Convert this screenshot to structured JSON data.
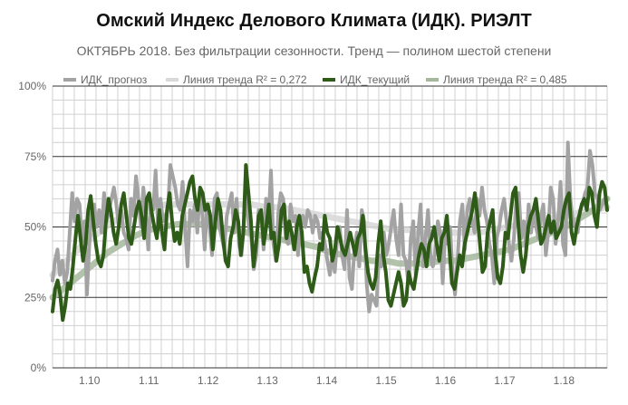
{
  "chart_data": {
    "type": "line",
    "title": "Омский Индекс Делового Климата (ИДК). РИЭЛТ",
    "subtitle": "ОКТЯБРЬ 2018. Без фильтрации сезонности. Тренд — полином шестой степени",
    "xlabel": "",
    "ylabel": "",
    "x_tick_labels": [
      "1.10",
      "1.11",
      "1.12",
      "1.13",
      "1.14",
      "1.15",
      "1.16",
      "1.17",
      "1.18"
    ],
    "y_tick_labels": [
      "0%",
      "25%",
      "50%",
      "75%",
      "100%"
    ],
    "ylim": [
      0,
      100
    ],
    "grid": true,
    "legend_position": "top",
    "series": [
      {
        "name": "ИДК_прогноз",
        "color": "#a3a3a3",
        "values": [
          31,
          38,
          42,
          33,
          38,
          30,
          34,
          48,
          62,
          52,
          60,
          58,
          45,
          52,
          26,
          44,
          56,
          58,
          50,
          56,
          48,
          62,
          52,
          56,
          60,
          64,
          58,
          50,
          56,
          48,
          46,
          42,
          60,
          54,
          68,
          60,
          50,
          64,
          55,
          42,
          58,
          56,
          70,
          50,
          60,
          52,
          54,
          56,
          72,
          68,
          64,
          58,
          56,
          66,
          50,
          36,
          56,
          52,
          58,
          48,
          62,
          55,
          42,
          58,
          50,
          40,
          60,
          62,
          50,
          46,
          42,
          54,
          58,
          62,
          48,
          60,
          44,
          40,
          52,
          62,
          50,
          46,
          35,
          40,
          56,
          54,
          42,
          60,
          52,
          70,
          44,
          38,
          55,
          62,
          60,
          46,
          44,
          58,
          52,
          54,
          40,
          50,
          54,
          50,
          56,
          54,
          48,
          54,
          52,
          46,
          48,
          44,
          38,
          33,
          40,
          34,
          46,
          50,
          40,
          35,
          56,
          32,
          28,
          42,
          48,
          36,
          56,
          52,
          30,
          20,
          26,
          24,
          22,
          40,
          36,
          48,
          40,
          44,
          50,
          56,
          46,
          40,
          58,
          40,
          38,
          30,
          46,
          52,
          33,
          48,
          58,
          36,
          46,
          56,
          40,
          36,
          42,
          52,
          48,
          30,
          48,
          44,
          50,
          34,
          26,
          38,
          52,
          58,
          42,
          56,
          60,
          52,
          48,
          60,
          54,
          64,
          56,
          52,
          44,
          40,
          30,
          46,
          50,
          56,
          60,
          52,
          44,
          38,
          46,
          60,
          62,
          46,
          52,
          42,
          58,
          48,
          56,
          50,
          46,
          54,
          58,
          40,
          48,
          64,
          60,
          44,
          52,
          66,
          44,
          40,
          80,
          60,
          52,
          50,
          48,
          56,
          58,
          62,
          64,
          77,
          72,
          62,
          60,
          56,
          58,
          60,
          60
        ]
      },
      {
        "name": "Линия тренда R² = 0,272",
        "color": "#d9d9d9",
        "values": [
          33,
          38,
          43,
          47,
          51,
          54,
          56,
          57,
          58,
          58,
          58,
          58,
          58,
          58,
          58,
          57,
          57,
          56,
          55,
          54,
          53,
          52,
          51,
          50,
          49,
          49,
          48,
          48,
          48,
          48,
          48,
          49,
          50,
          51,
          52,
          53,
          54,
          55,
          56,
          57
        ]
      },
      {
        "name": "ИДК_текущий",
        "color": "#2e5b17",
        "values": [
          20,
          28,
          31,
          26,
          17,
          22,
          30,
          28,
          36,
          46,
          54,
          46,
          38,
          44,
          56,
          61,
          52,
          44,
          38,
          36,
          40,
          52,
          60,
          55,
          48,
          44,
          50,
          58,
          62,
          54,
          46,
          44,
          50,
          56,
          59,
          54,
          46,
          60,
          62,
          55,
          50,
          46,
          56,
          48,
          42,
          56,
          62,
          52,
          45,
          48,
          44,
          54,
          58,
          62,
          66,
          68,
          60,
          56,
          64,
          62,
          56,
          58,
          54,
          42,
          52,
          60,
          56,
          46,
          38,
          36,
          46,
          50,
          56,
          52,
          40,
          48,
          72,
          62,
          52,
          36,
          44,
          54,
          56,
          44,
          50,
          58,
          46,
          48,
          38,
          44,
          56,
          58,
          46,
          52,
          48,
          42,
          50,
          54,
          48,
          34,
          36,
          30,
          27,
          32,
          36,
          44,
          42,
          54,
          48,
          46,
          38,
          42,
          50,
          46,
          42,
          40,
          44,
          48,
          44,
          40,
          46,
          48,
          54,
          42,
          34,
          30,
          28,
          32,
          44,
          52,
          40,
          34,
          24,
          22,
          26,
          30,
          34,
          30,
          22,
          24,
          34,
          30,
          28,
          34,
          40,
          44,
          42,
          36,
          44,
          46,
          50,
          44,
          38,
          46,
          48,
          54,
          42,
          30,
          28,
          34,
          40,
          36,
          44,
          48,
          52,
          56,
          62,
          54,
          44,
          34,
          36,
          48,
          52,
          56,
          40,
          32,
          30,
          36,
          48,
          46,
          54,
          62,
          64,
          52,
          40,
          34,
          40,
          50,
          54,
          56,
          60,
          52,
          44,
          46,
          50,
          54,
          48,
          52,
          46,
          48,
          50,
          56,
          60,
          62,
          48,
          44,
          50,
          54,
          58,
          60,
          56,
          64,
          62,
          54,
          50,
          62,
          66,
          64,
          56
        ]
      },
      {
        "name": "Линия тренда R² = 0,485",
        "color": "#a6b89c",
        "values": [
          25,
          29,
          33,
          37,
          41,
          44,
          47,
          49,
          50,
          51,
          51,
          51,
          50,
          49,
          48,
          47,
          46,
          45,
          44,
          43,
          41,
          40,
          39,
          38,
          38,
          37,
          37,
          37,
          38,
          38,
          39,
          40,
          41,
          42,
          44,
          46,
          48,
          50,
          53,
          56,
          60
        ]
      }
    ]
  }
}
